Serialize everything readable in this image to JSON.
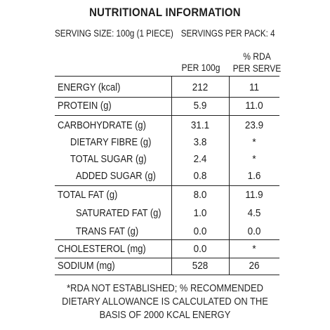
{
  "title": "NUTRITIONAL  INFORMATION",
  "serving_size": "SERVING SIZE: 100g (1 PIECE)",
  "servings_per_pack": "SERVINGS PER PACK: 4",
  "columns": {
    "per100": "PER 100g",
    "rda_line1": "% RDA",
    "rda_line2": "PER SERVE"
  },
  "rows": [
    {
      "name": "ENERGY (kcal)",
      "per100": "212",
      "rda": "11"
    },
    {
      "name": "PROTEIN (g)",
      "per100": "5.9",
      "rda": "11.0"
    },
    {
      "name": "CARBOHYDRATE (g)",
      "per100": "31.1",
      "rda": "23.9"
    },
    {
      "name": "DIETARY FIBRE (g)",
      "per100": "3.8",
      "rda": "*"
    },
    {
      "name": "TOTAL SUGAR (g)",
      "per100": "2.4",
      "rda": "*"
    },
    {
      "name": "ADDED SUGAR (g)",
      "per100": "0.8",
      "rda": "1.6"
    },
    {
      "name": "TOTAL FAT (g)",
      "per100": "8.0",
      "rda": "11.9"
    },
    {
      "name": "SATURATED FAT (g)",
      "per100": "1.0",
      "rda": "4.5"
    },
    {
      "name": "TRANS FAT (g)",
      "per100": "0.0",
      "rda": "0.0"
    },
    {
      "name": "CHOLESTEROL (mg)",
      "per100": "0.0",
      "rda": "*"
    },
    {
      "name": "SODIUM (mg)",
      "per100": "528",
      "rda": "26"
    }
  ],
  "footnote": {
    "line1": "*RDA NOT ESTABLISHED; % RECOMMENDED",
    "line2": "DIETARY ALLOWANCE IS CALCULATED ON THE",
    "line3": "BASIS OF 2000 KCAL ENERGY"
  }
}
